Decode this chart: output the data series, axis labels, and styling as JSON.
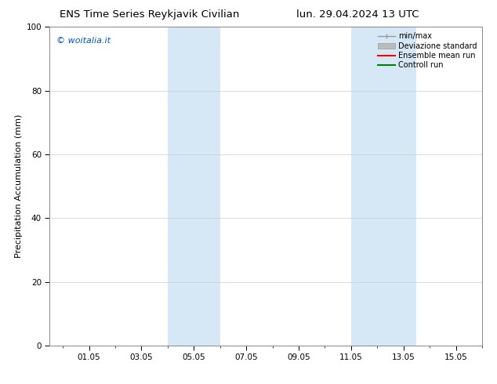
{
  "title_left": "ENS Time Series Reykjavik Civilian",
  "title_right": "lun. 29.04.2024 13 UTC",
  "ylabel": "Precipitation Accumulation (mm)",
  "watermark": "© woitalia.it",
  "watermark_color": "#0055cc",
  "ylim": [
    0,
    100
  ],
  "yticks": [
    0,
    20,
    40,
    60,
    80,
    100
  ],
  "xtick_labels": [
    "01.05",
    "03.05",
    "05.05",
    "07.05",
    "09.05",
    "11.05",
    "13.05",
    "15.05"
  ],
  "xtick_positions": [
    1,
    3,
    5,
    7,
    9,
    11,
    13,
    15
  ],
  "x_min": -0.5,
  "x_max": 16.0,
  "shaded_regions": [
    {
      "xmin": 4.0,
      "xmax": 6.0
    },
    {
      "xmin": 11.0,
      "xmax": 13.5
    }
  ],
  "shaded_color": "#d6e8f5",
  "legend_labels": [
    "min/max",
    "Deviazione standard",
    "Ensemble mean run",
    "Controll run"
  ],
  "legend_colors_line": [
    "#999999",
    "#bbbbbb",
    "#ff0000",
    "#008000"
  ],
  "bg_color": "#ffffff",
  "grid_color": "#cccccc",
  "spine_color": "#888888",
  "title_fontsize": 9.5,
  "ylabel_fontsize": 8,
  "tick_fontsize": 7.5,
  "legend_fontsize": 7,
  "watermark_fontsize": 8
}
